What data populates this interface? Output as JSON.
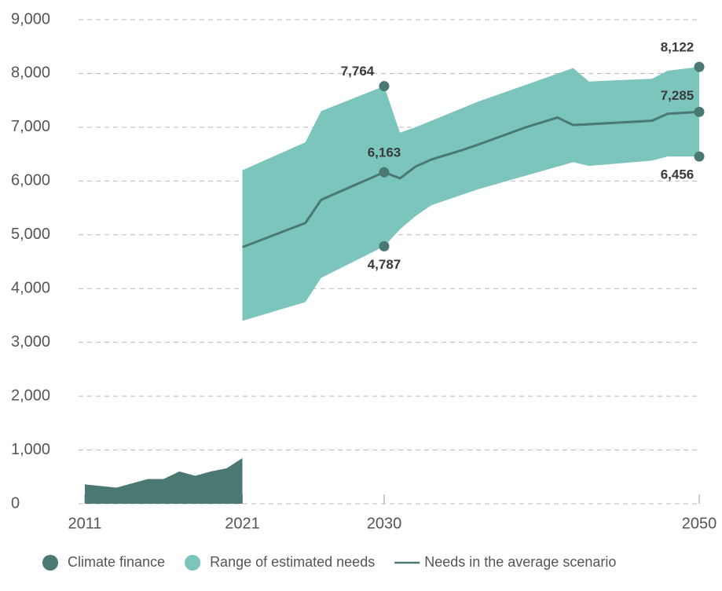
{
  "chart_data": {
    "type": "area",
    "xlim": [
      2011,
      2050
    ],
    "xticks": [
      2011,
      2021,
      2030,
      2050
    ],
    "ylim": [
      0,
      9000
    ],
    "yticks": [
      0,
      {
        "value": 1000,
        "label": "1,000"
      },
      {
        "value": 2000,
        "label": "2,000"
      },
      {
        "value": 3000,
        "label": "3,000"
      },
      {
        "value": 4000,
        "label": "4,000"
      },
      {
        "value": 5000,
        "label": "5,000"
      },
      {
        "value": 6000,
        "label": "6,000"
      },
      {
        "value": 7000,
        "label": "7,000"
      },
      {
        "value": 8000,
        "label": "8,000"
      },
      {
        "value": 9000,
        "label": "9,000"
      }
    ],
    "grid": true,
    "series": [
      {
        "name": "Climate finance",
        "type": "area",
        "color": "#4a7872",
        "x": [
          2011,
          2012,
          2013,
          2014,
          2015,
          2016,
          2017,
          2018,
          2019,
          2020,
          2021
        ],
        "values": [
          360,
          330,
          300,
          380,
          460,
          460,
          600,
          520,
          600,
          660,
          850
        ]
      },
      {
        "name": "Range of estimated needs",
        "type": "band",
        "color": "#7cc5bd",
        "x": [
          2021,
          2025,
          2026,
          2030,
          2031,
          2032,
          2033,
          2036,
          2042,
          2043,
          2047,
          2048,
          2050
        ],
        "upper": [
          6200,
          6720,
          7300,
          7764,
          6900,
          7000,
          7120,
          7480,
          8100,
          7850,
          7900,
          8050,
          8122
        ],
        "lower": [
          3400,
          3750,
          4200,
          4787,
          5100,
          5350,
          5550,
          5850,
          6350,
          6280,
          6380,
          6456,
          6456
        ]
      },
      {
        "name": "Needs in the average scenario",
        "type": "line",
        "color": "#4a7872",
        "x": [
          2021,
          2025,
          2026,
          2030,
          2031,
          2032,
          2033,
          2035,
          2036,
          2039,
          2041,
          2042,
          2047,
          2048,
          2050
        ],
        "values": [
          4770,
          5220,
          5650,
          6163,
          6050,
          6270,
          6400,
          6580,
          6680,
          7000,
          7180,
          7040,
          7120,
          7250,
          7285
        ]
      }
    ],
    "annotations": [
      {
        "x": 2030,
        "value": 7764,
        "label": "7,764"
      },
      {
        "x": 2030,
        "value": 6163,
        "label": "6,163"
      },
      {
        "x": 2030,
        "value": 4787,
        "label": "4,787"
      },
      {
        "x": 2050,
        "value": 8122,
        "label": "8,122"
      },
      {
        "x": 2050,
        "value": 7285,
        "label": "7,285"
      },
      {
        "x": 2050,
        "value": 6456,
        "label": "6,456"
      }
    ],
    "annotation_color": "#4a7872"
  }
}
